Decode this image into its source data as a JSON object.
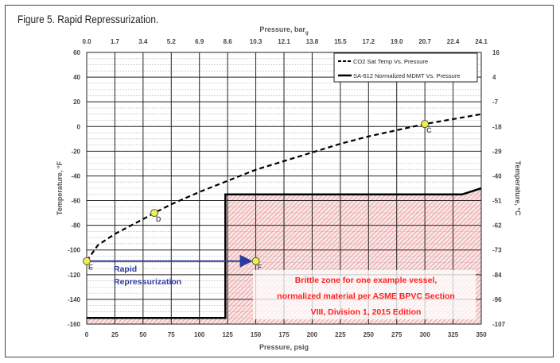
{
  "figure_title": "Figure 5. Rapid Repressurization.",
  "chart_data": {
    "type": "line",
    "xlabel": "Pressure, psig",
    "xlabel_top": "Pressure, bar",
    "xlabel_top_sub": "g",
    "ylabel": "Temperature, °F",
    "ylabel_right": "Temperature, °C",
    "xlim": [
      0,
      350
    ],
    "ylim": [
      -160,
      60
    ],
    "x_ticks": [
      0,
      25,
      50,
      75,
      100,
      125,
      150,
      175,
      200,
      225,
      250,
      275,
      300,
      325,
      350
    ],
    "x_ticks_top": [
      "0.0",
      "1.7",
      "3.4",
      "5.2",
      "6.9",
      "8.6",
      "10.3",
      "12.1",
      "13.8",
      "15.5",
      "17.2",
      "19.0",
      "20.7",
      "22.4",
      "24.1"
    ],
    "y_ticks": [
      60,
      40,
      20,
      0,
      -20,
      -40,
      -60,
      -80,
      -100,
      -120,
      -140,
      -160
    ],
    "y_ticks_right": [
      "16",
      "4",
      "-7",
      "-18",
      "-29",
      "-40",
      "-51",
      "-62",
      "-73",
      "-84",
      "-96",
      "-107"
    ],
    "grid": true,
    "legend_position": "top-right",
    "series": [
      {
        "name": "CO2 Sat Temp Vs. Pressure",
        "style": "dashed",
        "x": [
          0,
          10,
          25,
          50,
          60,
          75,
          100,
          125,
          150,
          175,
          200,
          225,
          250,
          275,
          300,
          325,
          350
        ],
        "y": [
          -109,
          -96,
          -87,
          -75,
          -70,
          -63,
          -53,
          -44,
          -35,
          -28,
          -21,
          -14,
          -8,
          -3,
          2,
          6,
          10
        ]
      },
      {
        "name": "SA-612 Normalized MDMT Vs. Pressure",
        "style": "solid",
        "x": [
          0,
          123,
          123,
          333,
          350
        ],
        "y": [
          -155,
          -155,
          -55,
          -55,
          -50
        ]
      }
    ],
    "points": [
      {
        "label": "C",
        "x": 300,
        "y": 2
      },
      {
        "label": "D",
        "x": 60,
        "y": -70
      },
      {
        "label": "E",
        "x": 0,
        "y": -109
      },
      {
        "label": "F",
        "x": 150,
        "y": -109
      }
    ],
    "arrow": {
      "label_line1": "Rapid",
      "label_line2": "Repressurization",
      "from": [
        0,
        -109
      ],
      "to": [
        150,
        -109
      ]
    },
    "brittle_zone": {
      "text": [
        "Brittle zone for one example vessel,",
        "normalized material per ASME BPVC Section",
        "VIII, Division 1, 2015 Edition"
      ]
    },
    "colors": {
      "arrow": "#2e3a9e",
      "brittle_text": "#ff2020",
      "hatch": "#e88a8a",
      "point": "#f2f04a"
    }
  }
}
